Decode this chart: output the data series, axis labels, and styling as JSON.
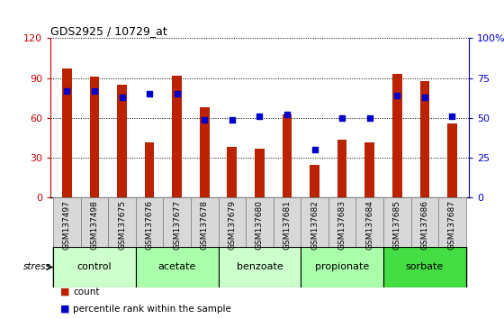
{
  "title": "GDS2925 / 10729_at",
  "samples": [
    "GSM137497",
    "GSM137498",
    "GSM137675",
    "GSM137676",
    "GSM137677",
    "GSM137678",
    "GSM137679",
    "GSM137680",
    "GSM137681",
    "GSM137682",
    "GSM137683",
    "GSM137684",
    "GSM137685",
    "GSM137686",
    "GSM137687"
  ],
  "counts": [
    97,
    91,
    85,
    42,
    92,
    68,
    38,
    37,
    63,
    25,
    44,
    42,
    93,
    88,
    56
  ],
  "percentiles": [
    67,
    67,
    63,
    65,
    65,
    49,
    49,
    51,
    52,
    30,
    50,
    50,
    64,
    63,
    51
  ],
  "groups": [
    {
      "label": "control",
      "start": 0,
      "end": 3,
      "color": "#ccffcc"
    },
    {
      "label": "acetate",
      "start": 3,
      "end": 6,
      "color": "#aaffaa"
    },
    {
      "label": "benzoate",
      "start": 6,
      "end": 9,
      "color": "#ccffcc"
    },
    {
      "label": "propionate",
      "start": 9,
      "end": 12,
      "color": "#aaffaa"
    },
    {
      "label": "sorbate",
      "start": 12,
      "end": 15,
      "color": "#44dd44"
    }
  ],
  "bar_color": "#bb2200",
  "dot_color": "#0000cc",
  "ylim_left": [
    0,
    120
  ],
  "ylim_right": [
    0,
    100
  ],
  "yticks_left": [
    0,
    30,
    60,
    90,
    120
  ],
  "yticks_right": [
    0,
    25,
    50,
    75,
    100
  ],
  "ytick_labels_right": [
    "0",
    "25",
    "50",
    "75",
    "100%"
  ],
  "left_tick_color": "#cc0000",
  "right_tick_color": "#0000cc",
  "sample_bg_color": "#d8d8d8",
  "stress_label": "stress",
  "legend_count": "count",
  "legend_pct": "percentile rank within the sample",
  "bar_width": 0.35
}
